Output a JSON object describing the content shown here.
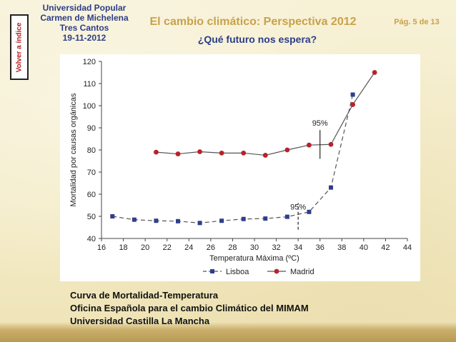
{
  "header": {
    "back_label": "Volver a índice",
    "org_lines": [
      "Universidad Popular",
      "Carmen de Michelena",
      "Tres Cantos",
      "19-11-2012"
    ],
    "title": "El cambio climático: Perspectiva 2012",
    "page": "Pág. 5 de 13",
    "subtitle": "¿Qué futuro nos espera?"
  },
  "chart_data": {
    "type": "line",
    "title": "",
    "xlabel": "Temperatura Máxima (ºC)",
    "ylabel": "Mortalidad por causas orgánicas",
    "xlim": [
      16,
      44
    ],
    "ylim": [
      40,
      120
    ],
    "xticks": [
      16,
      18,
      20,
      22,
      24,
      26,
      28,
      30,
      32,
      34,
      36,
      38,
      40,
      42,
      44
    ],
    "yticks": [
      40,
      50,
      60,
      70,
      80,
      90,
      100,
      110,
      120
    ],
    "grid": false,
    "legend": "bottom",
    "series": [
      {
        "name": "Lisboa",
        "marker": "square",
        "line_style": "dashed",
        "color": "#2f3e8c",
        "x": [
          17,
          19,
          21,
          23,
          25,
          27,
          29,
          31,
          33,
          35,
          37,
          39
        ],
        "y": [
          50,
          48.5,
          48,
          47.8,
          47,
          48,
          48.8,
          49,
          49.8,
          52,
          63,
          105
        ]
      },
      {
        "name": "Madrid",
        "marker": "circle",
        "line_style": "solid",
        "color": "#b8222a",
        "x": [
          21,
          23,
          25,
          27,
          29,
          31,
          33,
          35,
          37,
          39,
          41
        ],
        "y": [
          79,
          78.2,
          79.2,
          78.6,
          78.6,
          77.6,
          80,
          82.2,
          82.5,
          100.5,
          115
        ]
      }
    ],
    "annotations": [
      {
        "text": "95%",
        "x": 34,
        "y": 53,
        "line_y": [
          44,
          56
        ],
        "style": "dashed"
      },
      {
        "text": "95%",
        "x": 36,
        "y": 91,
        "line_y": [
          76,
          89
        ],
        "style": "solid"
      }
    ]
  },
  "footer": {
    "lines": [
      "Curva de Mortalidad-Temperatura",
      "Oficina Española para el cambio Climático del MIMAM",
      "Universidad Castilla La Mancha"
    ]
  }
}
